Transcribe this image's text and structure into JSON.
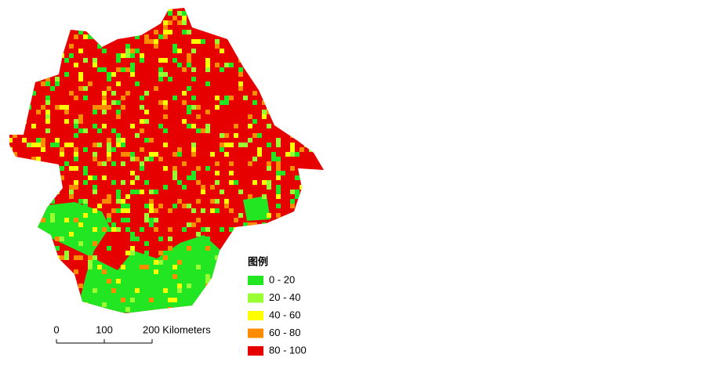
{
  "legend": {
    "title": "图例",
    "items": [
      {
        "label": "0 - 20",
        "color": "#22e622"
      },
      {
        "label": "20 - 40",
        "color": "#99ff33"
      },
      {
        "label": "40 - 60",
        "color": "#ffff00"
      },
      {
        "label": "60 - 80",
        "color": "#ff8c00"
      },
      {
        "label": "80 - 100",
        "color": "#e60000"
      }
    ]
  },
  "scale_bar": {
    "labels": [
      "0",
      "100",
      "200 Kilometers"
    ]
  }
}
